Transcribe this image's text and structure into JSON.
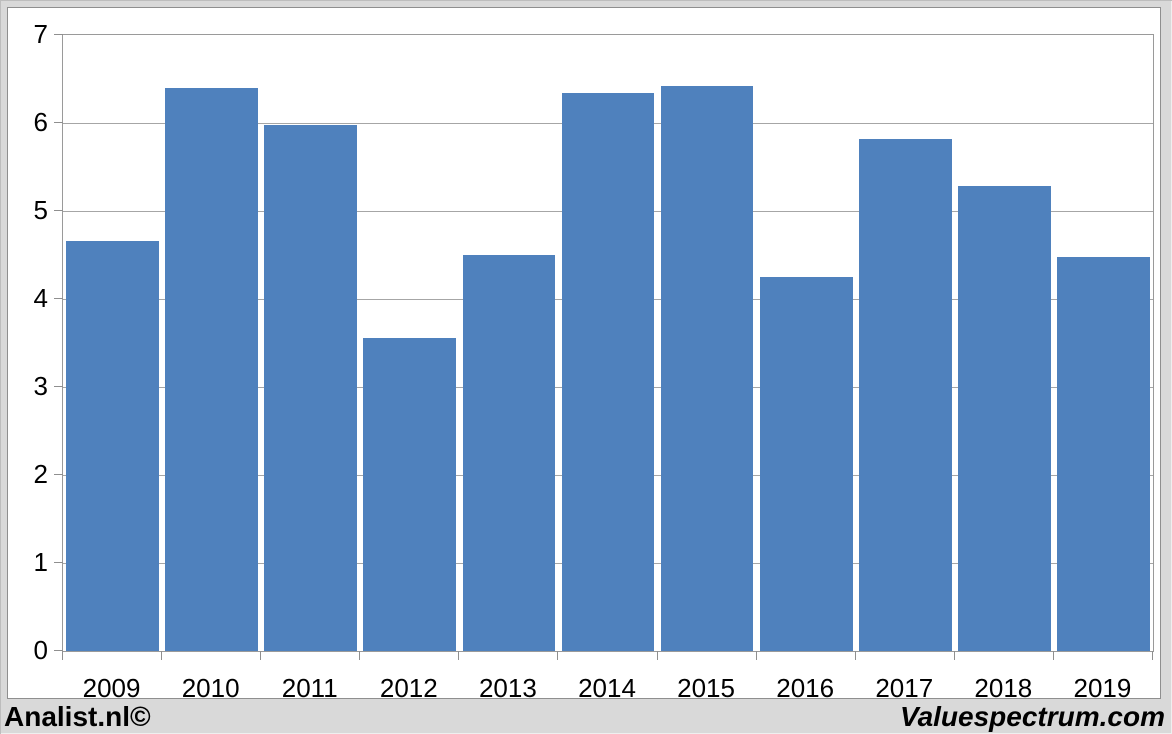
{
  "chart_data": {
    "type": "bar",
    "categories": [
      "2009",
      "2010",
      "2011",
      "2012",
      "2013",
      "2014",
      "2015",
      "2016",
      "2017",
      "2018",
      "2019"
    ],
    "values": [
      4.66,
      6.4,
      5.98,
      3.56,
      4.5,
      6.34,
      6.42,
      4.25,
      5.82,
      5.28,
      4.48
    ],
    "title": "",
    "xlabel": "",
    "ylabel": "",
    "ylim": [
      0,
      7
    ],
    "yticks": [
      0,
      1,
      2,
      3,
      4,
      5,
      6,
      7
    ],
    "grid": true,
    "legend": false,
    "bar_color": "#4F81BD"
  },
  "footer": {
    "left": "Analist.nl©",
    "right": "Valuespectrum.com"
  },
  "colors": {
    "page_background": "#D9D9D9",
    "chart_background": "#FFFFFF",
    "gridline": "#A6A6A6",
    "axis": "#8F8F8F",
    "text": "#000000",
    "bar": "#4F81BD"
  }
}
